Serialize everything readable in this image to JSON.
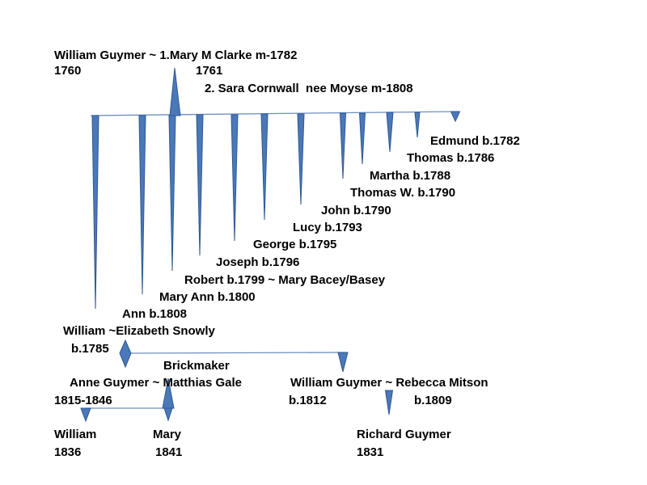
{
  "colors": {
    "shape_fill": "#4a78b8",
    "shape_stroke": "#2f5a94",
    "line": "#6f8fbf",
    "text": "#000000"
  },
  "founder": {
    "line": "William Guymer ~ 1.Mary M Clarke m-1782",
    "birth": "1760",
    "spouse1_birth": "1761",
    "second_marriage": "2. Sara Cornwall  nee Moyse m-1808"
  },
  "children": [
    "Edmund b.1782",
    "Thomas b.1786",
    "Martha b.1788",
    "Thomas W. b.1790",
    "John b.1790",
    "Lucy b.1793",
    "George b.1795",
    "Joseph b.1796",
    "Robert b.1799 ~ Mary Bacey/Basey",
    "Mary Ann b.1800",
    "Ann b.1808"
  ],
  "william_1785": {
    "line": "William ~Elizabeth Snowly",
    "birth": "b.1785"
  },
  "occupation": "Brickmaker",
  "anne": {
    "line": "Anne Guymer ~ Matthias Gale",
    "dates": "1815-1846"
  },
  "william_1812": {
    "line": "William Guymer ~ Rebecca Mitson",
    "birth": "b.1812",
    "spouse_birth": "b.1809"
  },
  "grandchildren": [
    {
      "name": "William",
      "year": "1836"
    },
    {
      "name": "Mary",
      "year": "1841"
    },
    {
      "name": "Richard Guymer",
      "year": "1831"
    }
  ]
}
